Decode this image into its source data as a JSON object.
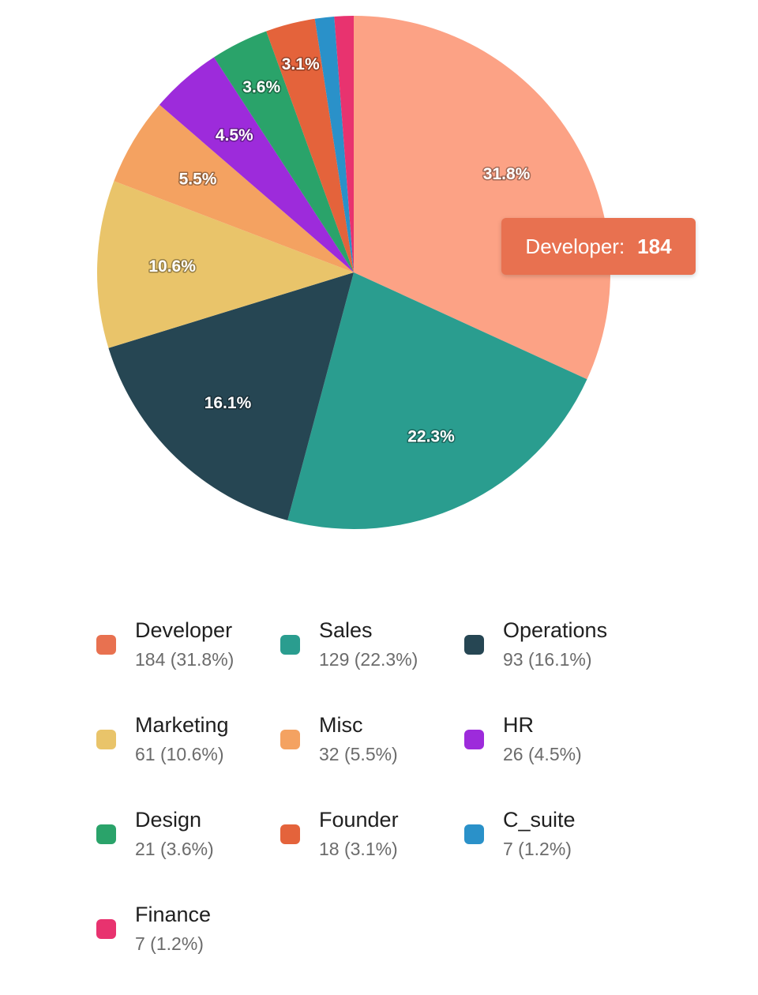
{
  "chart_data": {
    "type": "pie",
    "categories": [
      "Developer",
      "Sales",
      "Operations",
      "Marketing",
      "Misc",
      "HR",
      "Design",
      "Founder",
      "C_suite",
      "Finance"
    ],
    "values": [
      184,
      129,
      93,
      61,
      32,
      26,
      21,
      18,
      7,
      7
    ],
    "percent_labels": [
      "31.8%",
      "22.3%",
      "16.1%",
      "10.6%",
      "5.5%",
      "4.5%",
      "3.6%",
      "3.1%",
      "1.2%",
      "1.2%"
    ],
    "colors": [
      "#fca285",
      "#2a9d8f",
      "#264653",
      "#e9c46a",
      "#f4a261",
      "#9d2bdb",
      "#2aa36a",
      "#e4633b",
      "#2a91c9",
      "#e8336f"
    ],
    "legend_colors": [
      "#e87150",
      "#2a9d8f",
      "#264653",
      "#e9c46a",
      "#f4a261",
      "#9d2bdb",
      "#2aa36a",
      "#e4633b",
      "#2a91c9",
      "#e8336f"
    ],
    "legend_values": [
      "184 (31.8%)",
      "129 (22.3%)",
      "93 (16.1%)",
      "61 (10.6%)",
      "32 (5.5%)",
      "26 (4.5%)",
      "21 (3.6%)",
      "18 (3.1%)",
      "7 (1.2%)",
      "7 (1.2%)"
    ],
    "legend": "bottom",
    "start_angle": "top (12 o'clock), clockwise"
  },
  "tooltip": {
    "label": "Developer",
    "separator": ":",
    "value": "184"
  }
}
